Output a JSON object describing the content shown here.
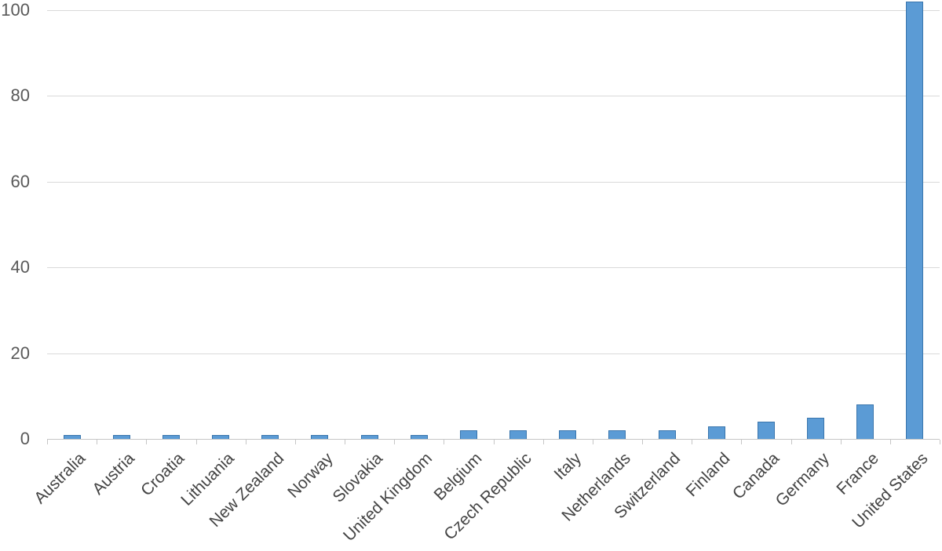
{
  "chart_data": {
    "type": "bar",
    "title": "",
    "xlabel": "",
    "ylabel": "",
    "categories": [
      "Australia",
      "Austria",
      "Croatia",
      "Lithuania",
      "New Zealand",
      "Norway",
      "Slovakia",
      "United Kingdom",
      "Belgium",
      "Czech Republic",
      "Italy",
      "Netherlands",
      "Switzerland",
      "Finland",
      "Canada",
      "Germany",
      "France",
      "United States"
    ],
    "values": [
      1,
      1,
      1,
      1,
      1,
      1,
      1,
      1,
      2,
      2,
      2,
      2,
      2,
      3,
      4,
      5,
      8,
      102
    ],
    "ylim": [
      0,
      100
    ],
    "yticks": [
      0,
      20,
      40,
      60,
      80,
      100
    ],
    "grid": true,
    "legend": false,
    "colors": {
      "bar_fill": "#5b9bd5",
      "bar_border": "#3a76ad",
      "gridline": "#d9d9d9",
      "axis_line": "#c6c6c6",
      "y_tick_label": "#595959",
      "x_category_label": "#444444",
      "background": "#ffffff"
    }
  }
}
